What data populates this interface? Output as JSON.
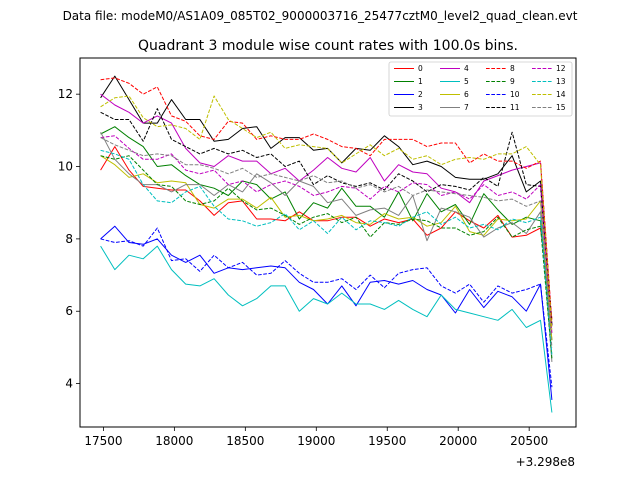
{
  "figure": {
    "suptitle": "Data file: modeM0/AS1A09_085T02_9000003716_25477cztM0_level2_quad_clean.evt",
    "offset_label": "+3.298e8"
  },
  "chart_data": {
    "type": "line",
    "title": "Quadrant 3 module wise count rates with 100.0s bins.",
    "xlabel": "",
    "ylabel": "",
    "xlim": [
      17335,
      20830
    ],
    "ylim": [
      2.8,
      13.0
    ],
    "xticks": [
      17500,
      18000,
      18500,
      19000,
      19500,
      20000,
      20500
    ],
    "yticks": [
      4,
      6,
      8,
      10,
      12
    ],
    "grid": false,
    "legend_position": "top-right",
    "x": [
      17480,
      17580,
      17680,
      17780,
      17880,
      17980,
      18080,
      18180,
      18280,
      18380,
      18480,
      18580,
      18680,
      18780,
      18880,
      18980,
      19080,
      19180,
      19280,
      19380,
      19480,
      19580,
      19680,
      19780,
      19880,
      19980,
      20080,
      20180,
      20280,
      20380,
      20480,
      20580,
      20660
    ],
    "series": [
      {
        "name": "0",
        "color": "#ff0000",
        "dash": "solid",
        "values": [
          9.9,
          10.55,
          9.9,
          9.45,
          9.4,
          9.35,
          9.35,
          9.05,
          8.65,
          9.0,
          9.05,
          8.55,
          8.55,
          8.5,
          8.75,
          8.5,
          8.5,
          8.6,
          8.6,
          8.35,
          8.55,
          8.45,
          8.55,
          8.1,
          8.3,
          8.75,
          8.5,
          8.3,
          8.65,
          8.05,
          8.1,
          8.3,
          5.8
        ]
      },
      {
        "name": "1",
        "color": "#008000",
        "dash": "solid",
        "values": [
          10.9,
          11.1,
          10.8,
          10.55,
          10.0,
          10.05,
          9.75,
          9.5,
          9.4,
          9.2,
          9.6,
          9.5,
          9.1,
          9.3,
          8.55,
          9.0,
          8.85,
          9.4,
          8.9,
          8.9,
          8.6,
          9.3,
          8.5,
          9.25,
          8.75,
          8.95,
          8.4,
          9.25,
          8.8,
          8.4,
          8.6,
          8.5,
          5.2
        ]
      },
      {
        "name": "2",
        "color": "#0000ff",
        "dash": "solid",
        "values": [
          8.0,
          8.35,
          7.9,
          7.85,
          8.0,
          7.55,
          7.35,
          7.55,
          7.05,
          7.2,
          7.15,
          7.2,
          7.25,
          7.2,
          6.8,
          6.6,
          6.2,
          6.7,
          6.15,
          6.8,
          6.85,
          6.75,
          6.85,
          6.6,
          6.45,
          5.95,
          6.6,
          6.1,
          6.55,
          6.4,
          6.0,
          6.75,
          3.55
        ]
      },
      {
        "name": "3",
        "color": "#000000",
        "dash": "solid",
        "values": [
          11.9,
          12.5,
          11.85,
          11.2,
          11.2,
          11.85,
          11.3,
          11.3,
          10.7,
          10.75,
          11.05,
          11.1,
          10.5,
          10.8,
          10.8,
          10.45,
          10.5,
          10.1,
          10.5,
          10.45,
          10.85,
          10.55,
          10.05,
          10.15,
          10.0,
          9.7,
          9.65,
          9.65,
          9.8,
          10.3,
          9.3,
          9.6,
          5.6
        ]
      },
      {
        "name": "4",
        "color": "#bf00bf",
        "dash": "solid",
        "values": [
          12.0,
          11.7,
          11.5,
          11.2,
          11.4,
          11.2,
          10.5,
          10.1,
          10.0,
          10.3,
          10.15,
          10.15,
          9.8,
          9.95,
          9.6,
          9.9,
          10.25,
          9.95,
          9.85,
          10.25,
          9.6,
          10.05,
          9.85,
          9.8,
          9.4,
          9.3,
          9.0,
          9.6,
          9.75,
          9.9,
          10.0,
          10.1,
          5.6
        ]
      },
      {
        "name": "5",
        "color": "#00bfbf",
        "dash": "solid",
        "values": [
          7.8,
          7.15,
          7.55,
          7.45,
          7.8,
          7.15,
          6.75,
          6.7,
          6.9,
          6.45,
          6.15,
          6.35,
          6.7,
          6.7,
          6.0,
          6.35,
          6.2,
          6.5,
          6.2,
          6.2,
          6.05,
          6.3,
          6.05,
          5.85,
          6.45,
          6.05,
          5.95,
          5.85,
          5.75,
          6.05,
          5.55,
          5.75,
          3.2
        ]
      },
      {
        "name": "6",
        "color": "#bfbf00",
        "dash": "solid",
        "values": [
          10.3,
          10.05,
          9.7,
          9.8,
          9.55,
          9.6,
          9.55,
          8.95,
          8.85,
          9.1,
          9.1,
          8.85,
          9.15,
          8.6,
          8.65,
          8.5,
          8.55,
          8.65,
          8.45,
          8.4,
          8.7,
          8.55,
          8.6,
          8.35,
          8.45,
          8.9,
          8.2,
          8.1,
          8.55,
          8.5,
          8.55,
          9.05,
          5.2
        ]
      },
      {
        "name": "7",
        "color": "#808080",
        "dash": "solid",
        "values": [
          10.95,
          10.2,
          9.8,
          9.5,
          9.5,
          9.3,
          9.5,
          9.5,
          9.2,
          9.5,
          9.3,
          9.8,
          9.55,
          9.2,
          9.6,
          9.45,
          9.0,
          9.1,
          8.65,
          8.8,
          8.85,
          8.65,
          9.2,
          7.95,
          8.85,
          8.75,
          8.6,
          8.05,
          8.3,
          8.45,
          8.15,
          8.75,
          4.6
        ]
      },
      {
        "name": "8",
        "color": "#ff0000",
        "dash": "dashed",
        "values": [
          12.4,
          12.45,
          12.3,
          12.0,
          12.2,
          11.4,
          11.25,
          10.85,
          10.75,
          11.25,
          11.2,
          10.75,
          10.85,
          10.75,
          10.75,
          10.9,
          10.75,
          10.55,
          10.5,
          10.3,
          10.75,
          10.75,
          10.75,
          10.55,
          10.65,
          10.65,
          10.1,
          10.35,
          10.15,
          10.15,
          9.95,
          10.15,
          5.7
        ]
      },
      {
        "name": "9",
        "color": "#008000",
        "dash": "dashed",
        "values": [
          10.3,
          10.2,
          10.3,
          9.9,
          9.5,
          9.45,
          9.05,
          8.95,
          9.05,
          9.4,
          9.05,
          8.8,
          8.85,
          8.65,
          8.4,
          8.6,
          8.7,
          8.45,
          8.6,
          8.05,
          8.45,
          8.4,
          8.55,
          8.5,
          8.3,
          8.3,
          8.1,
          8.2,
          8.6,
          8.05,
          8.25,
          8.35,
          4.7
        ]
      },
      {
        "name": "10",
        "color": "#0000ff",
        "dash": "dashed",
        "values": [
          8.0,
          7.9,
          7.95,
          7.8,
          8.3,
          7.4,
          7.45,
          7.1,
          7.55,
          7.2,
          7.35,
          7.0,
          7.05,
          7.4,
          7.05,
          6.8,
          6.8,
          6.9,
          6.6,
          7.0,
          6.65,
          7.05,
          7.15,
          7.2,
          6.7,
          6.5,
          6.75,
          6.25,
          6.7,
          6.5,
          6.6,
          6.75,
          3.9
        ]
      },
      {
        "name": "11",
        "color": "#000000",
        "dash": "dashed",
        "values": [
          11.5,
          11.3,
          11.3,
          10.7,
          11.6,
          10.75,
          10.55,
          10.35,
          10.5,
          10.35,
          10.45,
          10.25,
          10.35,
          10.0,
          10.15,
          9.5,
          9.75,
          9.55,
          9.45,
          9.55,
          9.35,
          9.8,
          9.6,
          9.3,
          9.5,
          9.45,
          9.35,
          9.7,
          9.45,
          10.95,
          9.5,
          9.45,
          5.6
        ]
      },
      {
        "name": "12",
        "color": "#bf00bf",
        "dash": "dashed",
        "values": [
          10.8,
          10.85,
          10.5,
          10.2,
          10.2,
          10.35,
          9.9,
          9.8,
          9.9,
          9.5,
          9.6,
          9.3,
          9.5,
          9.6,
          9.45,
          9.2,
          9.3,
          9.45,
          9.4,
          9.1,
          9.45,
          9.3,
          9.55,
          9.5,
          9.2,
          9.3,
          9.1,
          9.5,
          9.2,
          9.3,
          9.1,
          9.5,
          5.4
        ]
      },
      {
        "name": "13",
        "color": "#00bfbf",
        "dash": "dashed",
        "values": [
          10.45,
          10.35,
          10.2,
          9.5,
          9.05,
          9.0,
          9.3,
          9.45,
          8.9,
          8.55,
          8.5,
          8.35,
          8.45,
          8.7,
          8.25,
          8.5,
          8.15,
          8.6,
          8.25,
          8.5,
          8.45,
          8.35,
          8.6,
          8.75,
          8.4,
          8.6,
          8.3,
          8.4,
          8.25,
          8.55,
          8.45,
          8.6,
          4.8
        ]
      },
      {
        "name": "14",
        "color": "#bfbf00",
        "dash": "dashed",
        "values": [
          11.65,
          11.9,
          11.95,
          11.35,
          11.1,
          11.15,
          11.05,
          10.75,
          11.95,
          11.3,
          11.05,
          10.8,
          10.95,
          10.5,
          10.6,
          10.55,
          10.5,
          10.1,
          10.35,
          10.6,
          10.3,
          10.5,
          10.2,
          10.3,
          10.05,
          10.2,
          10.25,
          10.2,
          10.35,
          10.35,
          10.55,
          10.05,
          5.5
        ]
      },
      {
        "name": "15",
        "color": "#808080",
        "dash": "dashed",
        "values": [
          10.8,
          10.6,
          10.45,
          10.3,
          10.35,
          10.3,
          10.05,
          10.05,
          9.95,
          9.8,
          9.95,
          9.7,
          9.8,
          9.7,
          9.6,
          9.75,
          9.55,
          9.6,
          9.4,
          9.5,
          9.3,
          9.45,
          9.2,
          9.35,
          9.3,
          9.25,
          9.2,
          9.15,
          9.05,
          9.1,
          8.9,
          9.05,
          5.0
        ]
      }
    ]
  }
}
